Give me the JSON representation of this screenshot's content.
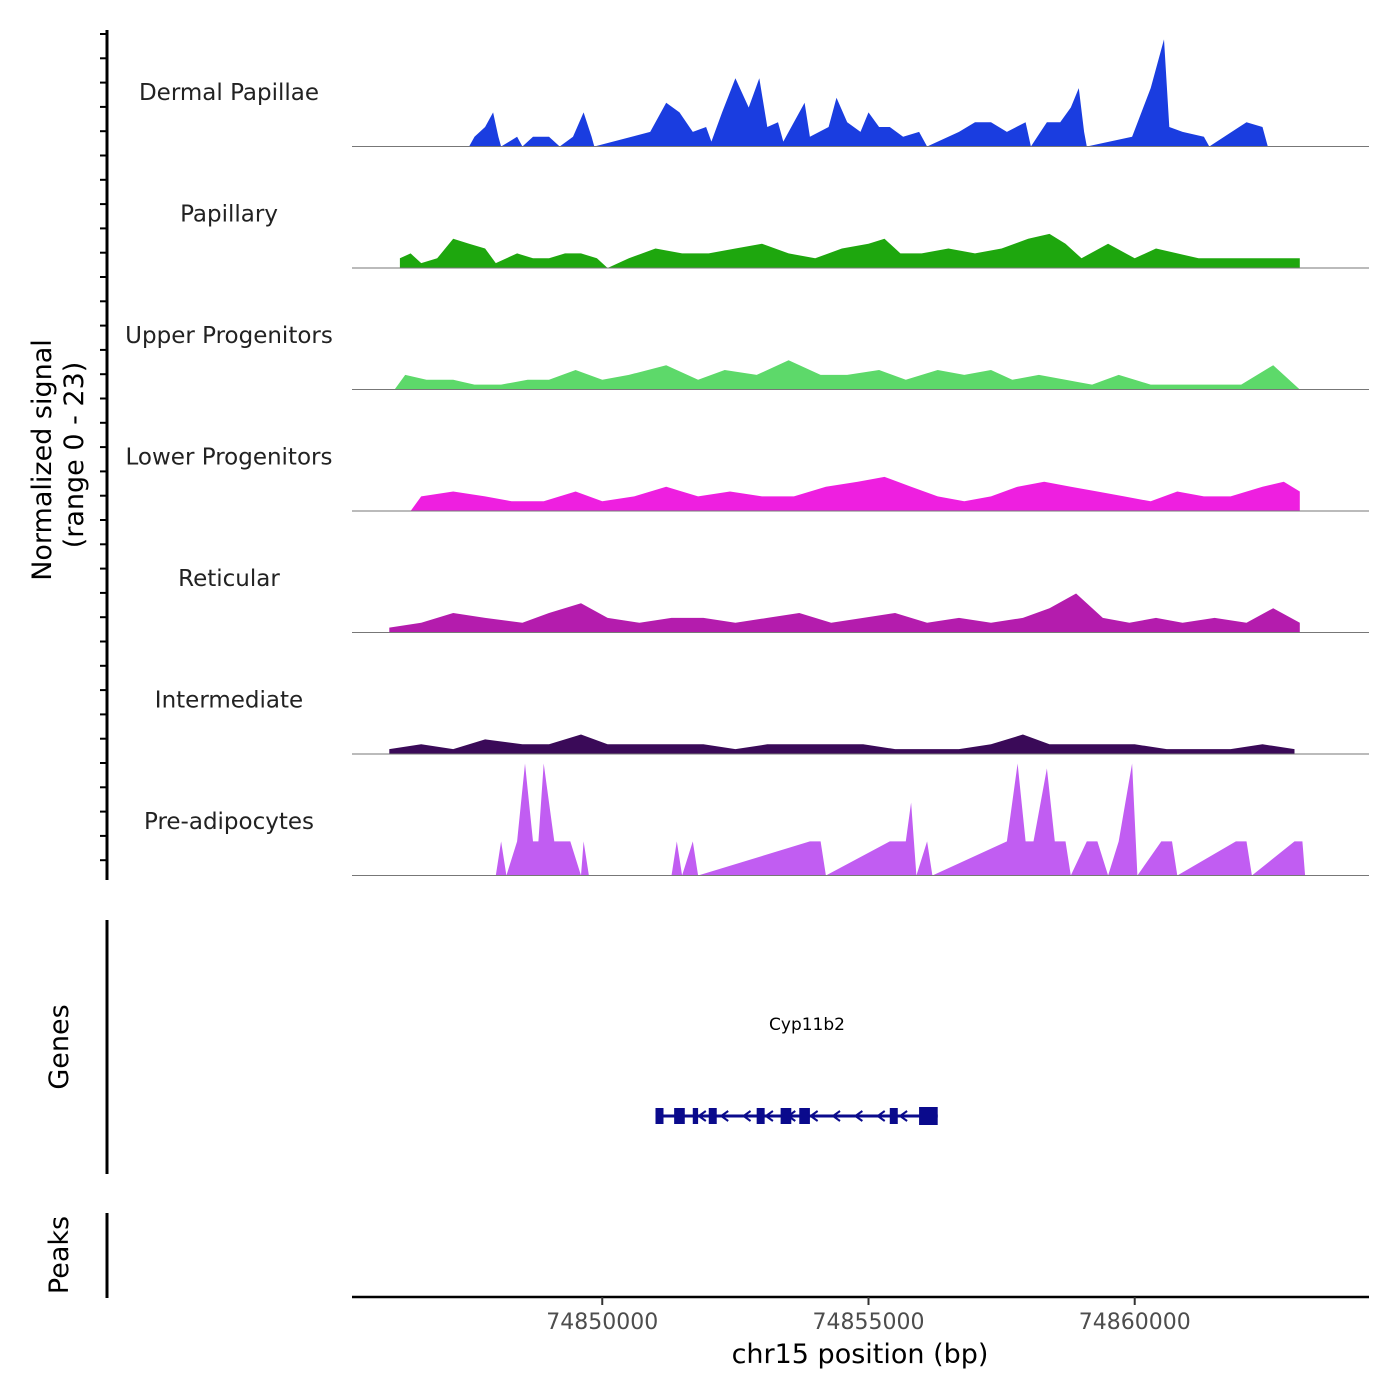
{
  "chart_data": {
    "type": "area",
    "title": "",
    "ylabel_line1": "Normalized signal",
    "ylabel_line2": "(range 0 - 23)",
    "xlabel": "chr15 position (bp)",
    "x_range": [
      74845300,
      74864400
    ],
    "x_ticks": [
      74850000,
      74855000,
      74860000
    ],
    "x_tick_labels": [
      "74850000",
      "74855000",
      "74860000"
    ],
    "y_range": [
      0,
      23
    ],
    "genes_label": "Genes",
    "peaks_label": "Peaks",
    "tracks": [
      {
        "name": "Dermal Papillae",
        "color": "#1a3de0",
        "points": [
          [
            74847500,
            0
          ],
          [
            74847600,
            2
          ],
          [
            74847800,
            4
          ],
          [
            74847950,
            7
          ],
          [
            74848050,
            2
          ],
          [
            74848100,
            0
          ],
          [
            74848400,
            2
          ],
          [
            74848500,
            0
          ],
          [
            74848700,
            2
          ],
          [
            74849000,
            2
          ],
          [
            74849200,
            0
          ],
          [
            74849450,
            2
          ],
          [
            74849650,
            7
          ],
          [
            74849800,
            2
          ],
          [
            74849850,
            0
          ],
          [
            74850900,
            3
          ],
          [
            74851200,
            9
          ],
          [
            74851450,
            7
          ],
          [
            74851700,
            3
          ],
          [
            74851950,
            4
          ],
          [
            74852050,
            1
          ],
          [
            74852250,
            7
          ],
          [
            74852500,
            14
          ],
          [
            74852750,
            8
          ],
          [
            74852950,
            14
          ],
          [
            74853100,
            4
          ],
          [
            74853300,
            5
          ],
          [
            74853400,
            1
          ],
          [
            74853800,
            9
          ],
          [
            74853900,
            2
          ],
          [
            74854250,
            4
          ],
          [
            74854400,
            10
          ],
          [
            74854600,
            5
          ],
          [
            74854850,
            3
          ],
          [
            74855000,
            7
          ],
          [
            74855200,
            4
          ],
          [
            74855400,
            4
          ],
          [
            74855650,
            2
          ],
          [
            74855950,
            3
          ],
          [
            74856100,
            0
          ],
          [
            74856700,
            3
          ],
          [
            74857000,
            5
          ],
          [
            74857300,
            5
          ],
          [
            74857600,
            3
          ],
          [
            74857950,
            5
          ],
          [
            74858050,
            0
          ],
          [
            74858350,
            5
          ],
          [
            74858600,
            5
          ],
          [
            74858800,
            8
          ],
          [
            74858950,
            12
          ],
          [
            74859050,
            3
          ],
          [
            74859100,
            0
          ],
          [
            74859950,
            2
          ],
          [
            74860300,
            12
          ],
          [
            74860550,
            22
          ],
          [
            74860650,
            4
          ],
          [
            74860900,
            3
          ],
          [
            74861300,
            2
          ],
          [
            74861400,
            0
          ],
          [
            74862100,
            5
          ],
          [
            74862400,
            4
          ],
          [
            74862500,
            0
          ]
        ]
      },
      {
        "name": "Papillary",
        "color": "#1ea70e",
        "points": [
          [
            74846200,
            2
          ],
          [
            74846400,
            3
          ],
          [
            74846600,
            1
          ],
          [
            74846900,
            2
          ],
          [
            74847200,
            6
          ],
          [
            74847500,
            5
          ],
          [
            74847800,
            4
          ],
          [
            74848000,
            1
          ],
          [
            74848400,
            3
          ],
          [
            74848700,
            2
          ],
          [
            74849000,
            2
          ],
          [
            74849300,
            3
          ],
          [
            74849600,
            3
          ],
          [
            74849900,
            2
          ],
          [
            74850100,
            0
          ],
          [
            74850500,
            2
          ],
          [
            74851000,
            4
          ],
          [
            74851500,
            3
          ],
          [
            74852000,
            3
          ],
          [
            74852500,
            4
          ],
          [
            74853000,
            5
          ],
          [
            74853500,
            3
          ],
          [
            74854000,
            2
          ],
          [
            74854500,
            4
          ],
          [
            74855000,
            5
          ],
          [
            74855300,
            6
          ],
          [
            74855600,
            3
          ],
          [
            74856000,
            3
          ],
          [
            74856500,
            4
          ],
          [
            74857000,
            3
          ],
          [
            74857500,
            4
          ],
          [
            74858000,
            6
          ],
          [
            74858400,
            7
          ],
          [
            74858700,
            5
          ],
          [
            74859000,
            2
          ],
          [
            74859500,
            5
          ],
          [
            74860000,
            2
          ],
          [
            74860400,
            4
          ],
          [
            74860800,
            3
          ],
          [
            74861200,
            2
          ],
          [
            74861700,
            2
          ],
          [
            74862200,
            2
          ],
          [
            74862700,
            2
          ],
          [
            74863100,
            2
          ]
        ]
      },
      {
        "name": "Upper Progenitors",
        "color": "#5dd96a",
        "points": [
          [
            74846100,
            0
          ],
          [
            74846300,
            3
          ],
          [
            74846700,
            2
          ],
          [
            74847200,
            2
          ],
          [
            74847600,
            1
          ],
          [
            74848100,
            1
          ],
          [
            74848600,
            2
          ],
          [
            74849000,
            2
          ],
          [
            74849500,
            4
          ],
          [
            74850000,
            2
          ],
          [
            74850500,
            3
          ],
          [
            74851200,
            5
          ],
          [
            74851800,
            2
          ],
          [
            74852300,
            4
          ],
          [
            74852900,
            3
          ],
          [
            74853500,
            6
          ],
          [
            74854100,
            3
          ],
          [
            74854600,
            3
          ],
          [
            74855200,
            4
          ],
          [
            74855700,
            2
          ],
          [
            74856300,
            4
          ],
          [
            74856800,
            3
          ],
          [
            74857300,
            4
          ],
          [
            74857700,
            2
          ],
          [
            74858200,
            3
          ],
          [
            74858700,
            2
          ],
          [
            74859200,
            1
          ],
          [
            74859700,
            3
          ],
          [
            74860300,
            1
          ],
          [
            74860900,
            1
          ],
          [
            74861400,
            1
          ],
          [
            74862000,
            1
          ],
          [
            74862600,
            5
          ],
          [
            74862900,
            2
          ],
          [
            74863100,
            0
          ]
        ]
      },
      {
        "name": "Lower Progenitors",
        "color": "#ee1fe0",
        "points": [
          [
            74846400,
            0
          ],
          [
            74846600,
            3
          ],
          [
            74847200,
            4
          ],
          [
            74847800,
            3
          ],
          [
            74848300,
            2
          ],
          [
            74848900,
            2
          ],
          [
            74849500,
            4
          ],
          [
            74850000,
            2
          ],
          [
            74850600,
            3
          ],
          [
            74851200,
            5
          ],
          [
            74851800,
            3
          ],
          [
            74852400,
            4
          ],
          [
            74853000,
            3
          ],
          [
            74853600,
            3
          ],
          [
            74854200,
            5
          ],
          [
            74854800,
            6
          ],
          [
            74855300,
            7
          ],
          [
            74855800,
            5
          ],
          [
            74856300,
            3
          ],
          [
            74856800,
            2
          ],
          [
            74857300,
            3
          ],
          [
            74857800,
            5
          ],
          [
            74858300,
            6
          ],
          [
            74858800,
            5
          ],
          [
            74859300,
            4
          ],
          [
            74859800,
            3
          ],
          [
            74860300,
            2
          ],
          [
            74860800,
            4
          ],
          [
            74861300,
            3
          ],
          [
            74861800,
            3
          ],
          [
            74862400,
            5
          ],
          [
            74862800,
            6
          ],
          [
            74863100,
            4
          ]
        ]
      },
      {
        "name": "Reticular",
        "color": "#b41cad",
        "points": [
          [
            74846000,
            1
          ],
          [
            74846600,
            2
          ],
          [
            74847200,
            4
          ],
          [
            74847800,
            3
          ],
          [
            74848500,
            2
          ],
          [
            74849000,
            4
          ],
          [
            74849600,
            6
          ],
          [
            74850100,
            3
          ],
          [
            74850700,
            2
          ],
          [
            74851300,
            3
          ],
          [
            74851900,
            3
          ],
          [
            74852500,
            2
          ],
          [
            74853100,
            3
          ],
          [
            74853700,
            4
          ],
          [
            74854300,
            2
          ],
          [
            74854900,
            3
          ],
          [
            74855500,
            4
          ],
          [
            74856100,
            2
          ],
          [
            74856700,
            3
          ],
          [
            74857300,
            2
          ],
          [
            74857900,
            3
          ],
          [
            74858400,
            5
          ],
          [
            74858900,
            8
          ],
          [
            74859400,
            3
          ],
          [
            74859900,
            2
          ],
          [
            74860400,
            3
          ],
          [
            74860900,
            2
          ],
          [
            74861500,
            3
          ],
          [
            74862100,
            2
          ],
          [
            74862600,
            5
          ],
          [
            74863100,
            2
          ]
        ]
      },
      {
        "name": "Intermediate",
        "color": "#3a0a58",
        "points": [
          [
            74846000,
            1
          ],
          [
            74846600,
            2
          ],
          [
            74847200,
            1
          ],
          [
            74847800,
            3
          ],
          [
            74848500,
            2
          ],
          [
            74849000,
            2
          ],
          [
            74849600,
            4
          ],
          [
            74850100,
            2
          ],
          [
            74850700,
            2
          ],
          [
            74851300,
            2
          ],
          [
            74851900,
            2
          ],
          [
            74852500,
            1
          ],
          [
            74853100,
            2
          ],
          [
            74853700,
            2
          ],
          [
            74854300,
            2
          ],
          [
            74854900,
            2
          ],
          [
            74855500,
            1
          ],
          [
            74856100,
            1
          ],
          [
            74856700,
            1
          ],
          [
            74857300,
            2
          ],
          [
            74857900,
            4
          ],
          [
            74858400,
            2
          ],
          [
            74858900,
            2
          ],
          [
            74859500,
            2
          ],
          [
            74860000,
            2
          ],
          [
            74860600,
            1
          ],
          [
            74861200,
            1
          ],
          [
            74861800,
            1
          ],
          [
            74862400,
            2
          ],
          [
            74863000,
            1
          ]
        ]
      },
      {
        "name": "Pre-adipocytes",
        "color": "#c15df2",
        "points": [
          [
            74848000,
            0
          ],
          [
            74848100,
            7
          ],
          [
            74848200,
            0
          ],
          [
            74848400,
            7
          ],
          [
            74848550,
            23
          ],
          [
            74848700,
            7
          ],
          [
            74848800,
            7
          ],
          [
            74848900,
            23
          ],
          [
            74849100,
            7
          ],
          [
            74849400,
            7
          ],
          [
            74849600,
            0
          ],
          [
            74849650,
            7
          ],
          [
            74849750,
            0
          ],
          [
            74851300,
            0
          ],
          [
            74851400,
            7
          ],
          [
            74851500,
            0
          ],
          [
            74851700,
            7
          ],
          [
            74851800,
            0
          ],
          [
            74853900,
            7
          ],
          [
            74854100,
            7
          ],
          [
            74854200,
            0
          ],
          [
            74855400,
            7
          ],
          [
            74855700,
            7
          ],
          [
            74855800,
            15
          ],
          [
            74855900,
            0
          ],
          [
            74856100,
            7
          ],
          [
            74856200,
            0
          ],
          [
            74857600,
            7
          ],
          [
            74857800,
            23
          ],
          [
            74857950,
            7
          ],
          [
            74858100,
            7
          ],
          [
            74858350,
            22
          ],
          [
            74858500,
            7
          ],
          [
            74858700,
            7
          ],
          [
            74858800,
            0
          ],
          [
            74859100,
            7
          ],
          [
            74859300,
            7
          ],
          [
            74859500,
            0
          ],
          [
            74859700,
            7
          ],
          [
            74859950,
            23
          ],
          [
            74860050,
            0
          ],
          [
            74860500,
            7
          ],
          [
            74860700,
            7
          ],
          [
            74860800,
            0
          ],
          [
            74861900,
            7
          ],
          [
            74862100,
            7
          ],
          [
            74862200,
            0
          ],
          [
            74863000,
            7
          ],
          [
            74863150,
            7
          ],
          [
            74863200,
            0
          ]
        ]
      }
    ],
    "gene": {
      "name": "Cyp11b2",
      "strand": "-",
      "start": 74851000,
      "end": 74856300,
      "exons": [
        [
          74851000,
          74851150
        ],
        [
          74851350,
          74851550
        ],
        [
          74851700,
          74851800
        ],
        [
          74852000,
          74852150
        ],
        [
          74852900,
          74853050
        ],
        [
          74853350,
          74853550
        ],
        [
          74853700,
          74853900
        ],
        [
          74855400,
          74855550
        ],
        [
          74855950,
          74856300
        ]
      ]
    }
  }
}
